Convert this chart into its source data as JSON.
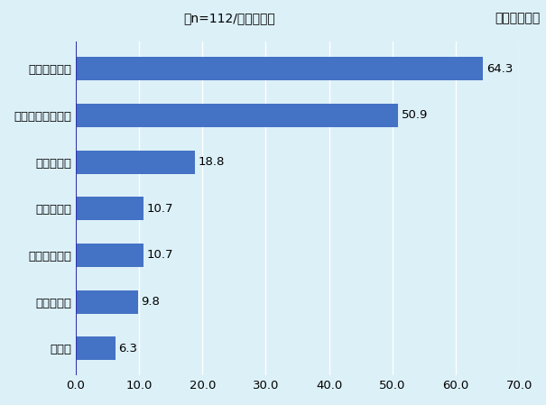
{
  "categories": [
    "その他",
    "投資の減少",
    "海外売り上げ",
    "事務コスト",
    "生産コスト",
    "調達・輸入コスト",
    "国内売り上げ"
  ],
  "values": [
    6.3,
    9.8,
    10.7,
    10.7,
    18.8,
    50.9,
    64.3
  ],
  "bar_color": "#4472C4",
  "background_color": "#DCF0F8",
  "plot_background_color": "#DCF0F8",
  "title_left": "（n=112/複数回答）",
  "title_right": "（単位：％）",
  "xlim": [
    0,
    70
  ],
  "xticks": [
    0.0,
    10.0,
    20.0,
    30.0,
    40.0,
    50.0,
    60.0,
    70.0
  ],
  "bar_height": 0.5,
  "label_fontsize": 9.5,
  "tick_fontsize": 9.5,
  "title_fontsize": 10,
  "value_fontsize": 9.5,
  "grid_color": "#FFFFFF",
  "bar_edge_color": "none"
}
